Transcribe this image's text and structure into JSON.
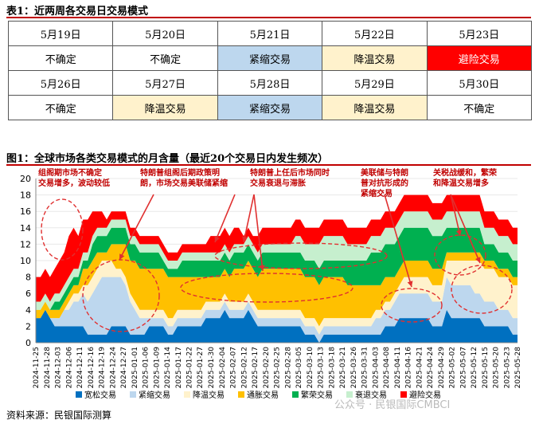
{
  "table1": {
    "title": "表1：近两周各交易日交易模式",
    "rows": [
      {
        "dates": [
          "5月19日",
          "5月20日",
          "5月21日",
          "5月22日",
          "5月23日"
        ],
        "modes": [
          "不确定",
          "不确定",
          "紧缩交易",
          "降温交易",
          "避险交易"
        ],
        "classes": [
          "",
          "",
          "contract",
          "cool",
          "hedge"
        ]
      },
      {
        "dates": [
          "5月26日",
          "5月27日",
          "5月28日",
          "5月29日",
          "5月30日"
        ],
        "modes": [
          "不确定",
          "降温交易",
          "紧缩交易",
          "降温交易",
          "不确定"
        ],
        "classes": [
          "",
          "cool",
          "contract",
          "cool",
          ""
        ]
      }
    ]
  },
  "figure1": {
    "title": "图1：全球市场各类交易模式的月含量（最近20个交易日内发生频次）"
  },
  "source": "资料来源：民银国际测算",
  "watermark": "公众号 · 民银国际CMBCI",
  "colors": {
    "loose": "#0070c0",
    "contract": "#bdd7ee",
    "cool": "#fff2cc",
    "inflation": "#ffc000",
    "boom": "#00b050",
    "recession": "#c6efce",
    "hedge_fill": "#f8cbad",
    "hedge": "#ff0000"
  },
  "chart_data": {
    "type": "area",
    "stacked": true,
    "ylim": [
      0,
      20
    ],
    "yticks": [
      0,
      2,
      4,
      6,
      8,
      10,
      12,
      14,
      16,
      18,
      20
    ],
    "x_labels": [
      "2024-11-25",
      "2024-11-28",
      "2024-12-03",
      "2024-12-06",
      "2024-12-11",
      "2024-12-16",
      "2024-12-19",
      "2024-12-24",
      "2024-12-27",
      "2025-01-01",
      "2025-01-06",
      "2025-01-09",
      "2025-01-14",
      "2025-01-17",
      "2025-01-22",
      "2025-01-27",
      "2025-01-30",
      "2025-02-04",
      "2025-02-07",
      "2025-02-12",
      "2025-02-17",
      "2025-02-20",
      "2025-02-25",
      "2025-02-28",
      "2025-03-05",
      "2025-03-10",
      "2025-03-13",
      "2025-03-18",
      "2025-03-21",
      "2025-03-26",
      "2025-03-31",
      "2025-04-03",
      "2025-04-08",
      "2025-04-11",
      "2025-04-16",
      "2025-04-21",
      "2025-04-24",
      "2025-04-29",
      "2025-05-02",
      "2025-05-07",
      "2025-05-12",
      "2025-05-15",
      "2025-05-20",
      "2025-05-23",
      "2025-05-28"
    ],
    "series": [
      {
        "name": "宽松交易",
        "key": "loose",
        "values": [
          3,
          3,
          4,
          3,
          2,
          2,
          2,
          2,
          2,
          2,
          2,
          1,
          1,
          1,
          1,
          1,
          2,
          2,
          2,
          2,
          1,
          1,
          1,
          1,
          2,
          2,
          2,
          2,
          1,
          1,
          2,
          2,
          2,
          2,
          2,
          2,
          3,
          3,
          3,
          3,
          4,
          3,
          3,
          3,
          3,
          4,
          3,
          2,
          2,
          2,
          2,
          2,
          2,
          2,
          2,
          2,
          2,
          1,
          1,
          1,
          0,
          1,
          1,
          1,
          1,
          1,
          1,
          1,
          1,
          1,
          1,
          1,
          1,
          1,
          2,
          2,
          2,
          3,
          3,
          3,
          3,
          3,
          3,
          3,
          2,
          2,
          2,
          4,
          3,
          3,
          3,
          3,
          3,
          3,
          3,
          2,
          2,
          2,
          2,
          2,
          2,
          1,
          1
        ]
      },
      {
        "name": "紧缩交易",
        "key": "contract",
        "values": [
          0,
          0,
          0,
          0,
          1,
          1,
          2,
          2,
          3,
          3,
          4,
          4,
          5,
          6,
          7,
          7,
          6,
          6,
          6,
          5,
          4,
          3,
          2,
          2,
          1,
          1,
          1,
          1,
          1,
          1,
          1,
          1,
          1,
          1,
          1,
          1,
          1,
          1,
          1,
          1,
          1,
          1,
          1,
          1,
          1,
          1,
          1,
          1,
          1,
          1,
          1,
          1,
          1,
          1,
          1,
          1,
          1,
          1,
          1,
          1,
          1,
          1,
          1,
          1,
          1,
          1,
          1,
          1,
          1,
          1,
          1,
          1,
          2,
          2,
          2,
          2,
          3,
          3,
          3,
          3,
          3,
          3,
          3,
          3,
          3,
          3,
          3,
          4,
          4,
          4,
          4,
          4,
          4,
          3,
          3,
          3,
          3,
          3,
          2,
          2,
          2,
          2,
          2
        ]
      },
      {
        "name": "降温交易",
        "key": "cool",
        "values": [
          0,
          0,
          0,
          0,
          0,
          0,
          0,
          1,
          1,
          1,
          1,
          2,
          2,
          2,
          2,
          2,
          2,
          1,
          1,
          1,
          1,
          1,
          1,
          1,
          1,
          1,
          1,
          1,
          1,
          1,
          1,
          1,
          1,
          1,
          1,
          1,
          1,
          1,
          1,
          1,
          1,
          1,
          1,
          1,
          1,
          1,
          1,
          1,
          1,
          1,
          1,
          1,
          1,
          1,
          1,
          1,
          1,
          1,
          1,
          1,
          1,
          1,
          1,
          1,
          1,
          1,
          1,
          1,
          1,
          1,
          1,
          1,
          1,
          1,
          1,
          1,
          1,
          1,
          2,
          2,
          2,
          2,
          2,
          2,
          2,
          2,
          2,
          2,
          3,
          3,
          3,
          3,
          3,
          4,
          4,
          4,
          4,
          4,
          4,
          4,
          4,
          4,
          4
        ]
      },
      {
        "name": "通胀交易",
        "key": "inflation",
        "values": [
          1,
          1,
          1,
          1,
          1,
          1,
          1,
          1,
          1,
          1,
          2,
          2,
          2,
          2,
          1,
          1,
          2,
          3,
          3,
          4,
          4,
          5,
          5,
          5,
          5,
          5,
          5,
          5,
          5,
          5,
          4,
          4,
          4,
          4,
          4,
          4,
          3,
          3,
          3,
          3,
          3,
          3,
          4,
          4,
          4,
          4,
          4,
          4,
          5,
          5,
          5,
          5,
          5,
          5,
          5,
          5,
          5,
          5,
          5,
          5,
          5,
          5,
          5,
          5,
          5,
          5,
          4,
          4,
          4,
          4,
          4,
          4,
          3,
          3,
          3,
          3,
          2,
          2,
          2,
          2,
          2,
          2,
          2,
          2,
          2,
          2,
          2,
          1,
          1,
          1,
          1,
          1,
          1,
          1,
          1,
          1,
          1,
          1,
          1,
          1,
          1,
          1,
          1
        ]
      },
      {
        "name": "繁荣交易",
        "key": "boom",
        "values": [
          0,
          0,
          0,
          0,
          1,
          1,
          1,
          1,
          1,
          1,
          1,
          1,
          2,
          2,
          2,
          2,
          2,
          2,
          2,
          2,
          2,
          2,
          2,
          2,
          2,
          2,
          2,
          1,
          1,
          1,
          1,
          2,
          2,
          2,
          2,
          2,
          2,
          2,
          2,
          2,
          2,
          2,
          2,
          2,
          2,
          2,
          2,
          2,
          2,
          2,
          2,
          2,
          2,
          2,
          2,
          2,
          2,
          2,
          2,
          2,
          2,
          2,
          2,
          2,
          2,
          2,
          3,
          3,
          3,
          3,
          3,
          4,
          4,
          4,
          4,
          4,
          4,
          4,
          4,
          4,
          4,
          4,
          4,
          4,
          4,
          4,
          4,
          3,
          3,
          3,
          3,
          3,
          3,
          3,
          3,
          2,
          2,
          2,
          2,
          2,
          2,
          2,
          2
        ]
      },
      {
        "name": "衰退交易",
        "key": "recession",
        "values": [
          1,
          1,
          1,
          1,
          1,
          1,
          1,
          1,
          1,
          1,
          1,
          1,
          1,
          1,
          1,
          1,
          1,
          1,
          1,
          1,
          1,
          1,
          1,
          1,
          1,
          1,
          1,
          1,
          1,
          1,
          1,
          1,
          1,
          1,
          1,
          1,
          1,
          1,
          1,
          1,
          1,
          1,
          1,
          1,
          1,
          1,
          1,
          1,
          1,
          1,
          1,
          1,
          1,
          1,
          1,
          2,
          2,
          2,
          2,
          2,
          3,
          3,
          3,
          3,
          3,
          3,
          2,
          2,
          2,
          2,
          2,
          2,
          2,
          2,
          2,
          2,
          2,
          2,
          2,
          2,
          2,
          2,
          2,
          2,
          2,
          2,
          2,
          2,
          2,
          2,
          2,
          2,
          2,
          2,
          2,
          2,
          2,
          2,
          2,
          2,
          2,
          2,
          2
        ]
      },
      {
        "name": "避险交易",
        "key": "hedge",
        "values": [
          3,
          3,
          3,
          3,
          3,
          4,
          4,
          5,
          5,
          4,
          4,
          4,
          3,
          2,
          2,
          1,
          1,
          1,
          1,
          1,
          1,
          1,
          1,
          1,
          1,
          1,
          1,
          1,
          1,
          1,
          1,
          1,
          1,
          1,
          1,
          1,
          1,
          2,
          2,
          2,
          2,
          2,
          2,
          2,
          1,
          1,
          1,
          2,
          2,
          2,
          2,
          2,
          2,
          2,
          2,
          2,
          2,
          2,
          2,
          2,
          2,
          2,
          2,
          2,
          2,
          2,
          2,
          2,
          2,
          2,
          2,
          2,
          2,
          2,
          2,
          2,
          2,
          2,
          2,
          2,
          2,
          2,
          2,
          2,
          2,
          2,
          2,
          2,
          2,
          2,
          2,
          2,
          2,
          2,
          2,
          2,
          2,
          2,
          2,
          2,
          2,
          2,
          2
        ]
      }
    ],
    "annotations": [
      "组阁期市场不确定交易增多，波动较低",
      "特朗普组阁后期政策明朗，市场交易美联储紧缩",
      "特朗普上任后市场同时交易衰退与滞胀",
      "美联储与特朗普对抗形成的紧缩交易",
      "关税战缓和，繁荣和降温交易增多"
    ]
  }
}
